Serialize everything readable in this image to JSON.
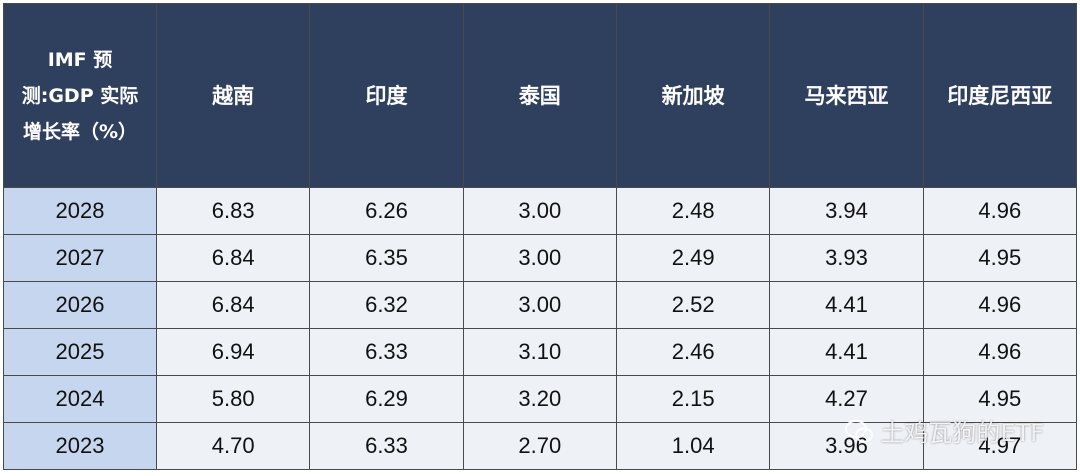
{
  "table": {
    "header": [
      "IMF 预测:GDP 实际增长率（%）",
      "越南",
      "印度",
      "泰国",
      "新加坡",
      "马来西亚",
      "印度尼西亚"
    ],
    "rows": [
      [
        "2028",
        "6.83",
        "6.26",
        "3.00",
        "2.48",
        "3.94",
        "4.96"
      ],
      [
        "2027",
        "6.84",
        "6.35",
        "3.00",
        "2.49",
        "3.93",
        "4.95"
      ],
      [
        "2026",
        "6.84",
        "6.32",
        "3.00",
        "2.52",
        "4.41",
        "4.96"
      ],
      [
        "2025",
        "6.94",
        "6.33",
        "3.10",
        "2.46",
        "4.41",
        "4.96"
      ],
      [
        "2024",
        "5.80",
        "6.29",
        "3.20",
        "2.15",
        "4.27",
        "4.95"
      ],
      [
        "2023",
        "4.70",
        "6.33",
        "2.70",
        "1.04",
        "3.96",
        "4.97"
      ]
    ]
  },
  "watermark": "土鸡瓦狗的ETF"
}
